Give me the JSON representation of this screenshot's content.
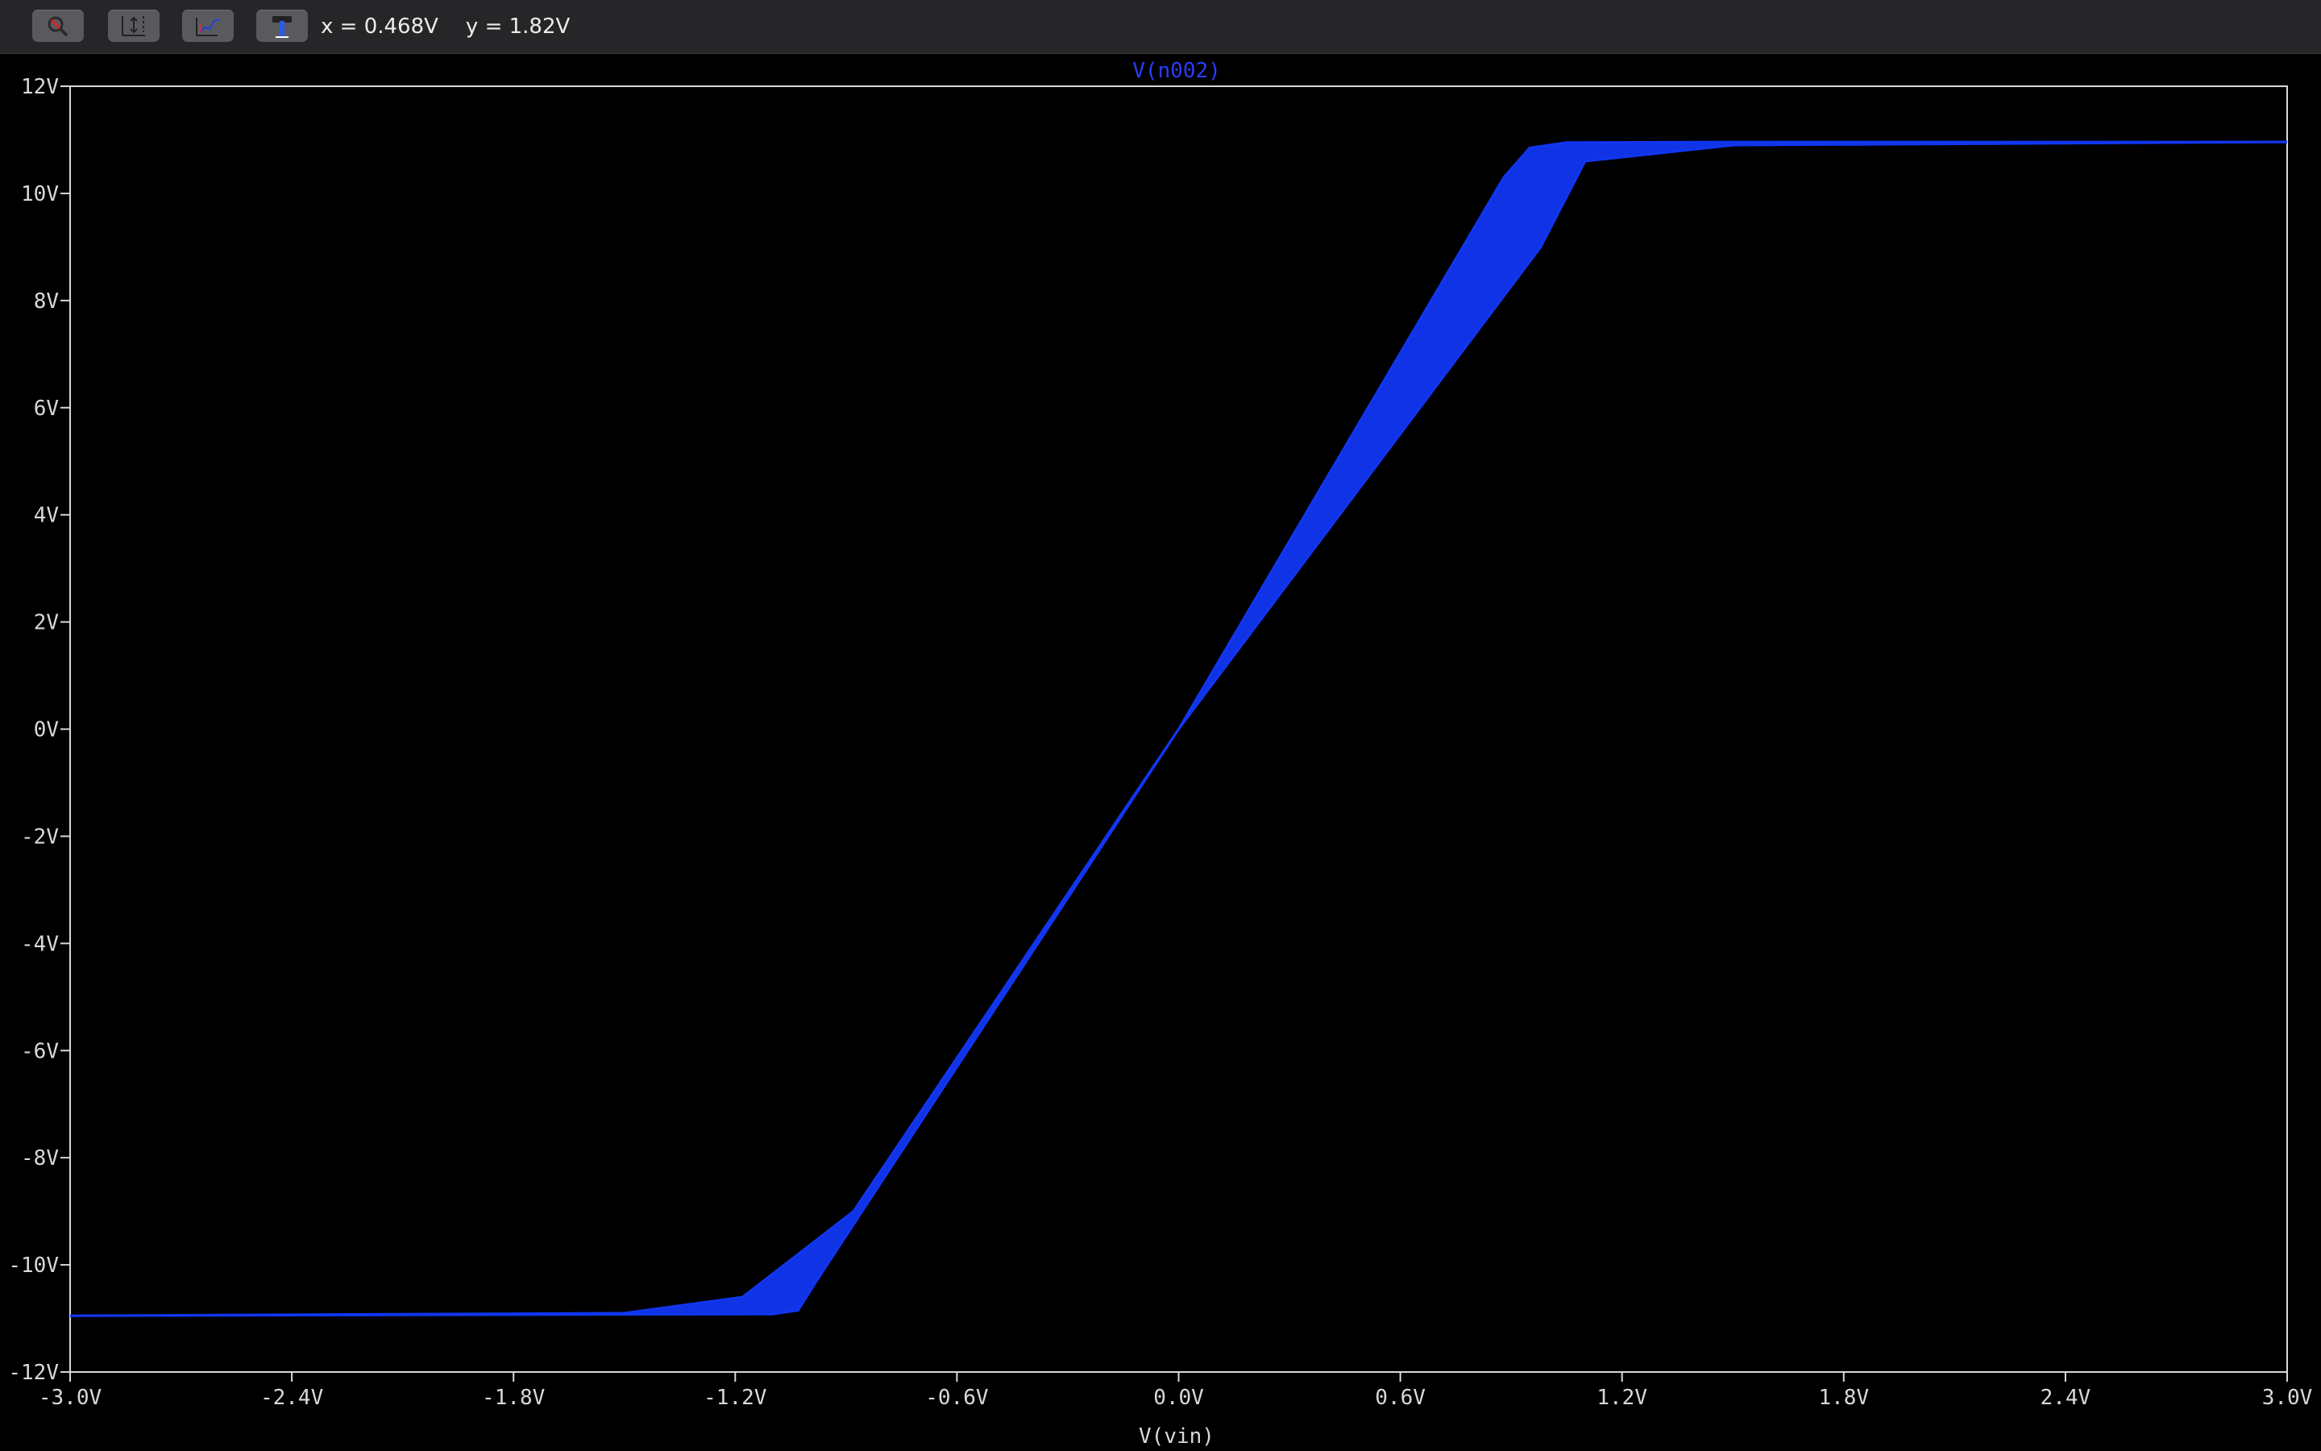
{
  "toolbar": {
    "buttons": [
      {
        "name": "zoom-tool",
        "icon": "magnifier-icon"
      },
      {
        "name": "autorange-tool",
        "icon": "autorange-icon"
      },
      {
        "name": "traces-tool",
        "icon": "trace-icon"
      },
      {
        "name": "settings-tool",
        "icon": "hammer-icon"
      }
    ],
    "cursor_x": "x = 0.468V",
    "cursor_y": "y = 1.82V"
  },
  "colors": {
    "background": "#000000",
    "toolbar": "#262628",
    "axis": "#d8d8d8",
    "trace": "#1136f2",
    "title": "#2a3cff"
  },
  "chart_data": {
    "type": "line",
    "title": "V(n002)",
    "xlabel": "V(vin)",
    "ylabel": "",
    "xlim": [
      -3.0,
      3.0
    ],
    "ylim": [
      -12,
      12
    ],
    "grid": false,
    "x_ticks": [
      "-3.0V",
      "-2.4V",
      "-1.8V",
      "-1.2V",
      "-0.6V",
      "0.0V",
      "0.6V",
      "1.2V",
      "1.8V",
      "2.4V",
      "3.0V"
    ],
    "y_ticks": [
      "12V",
      "10V",
      "8V",
      "6V",
      "4V",
      "2V",
      "0V",
      "-2V",
      "-4V",
      "-6V",
      "-8V",
      "-10V",
      "-12V"
    ],
    "series": [
      {
        "x": [
          -3.0,
          -1.5,
          -1.18,
          -0.88,
          0.0,
          0.88,
          0.95,
          1.05,
          1.5,
          3.0
        ],
        "y": [
          -10.95,
          -10.9,
          -10.6,
          -9.0,
          0.0,
          10.3,
          10.85,
          10.95,
          10.96,
          10.96
        ]
      },
      {
        "x": [
          -3.0,
          -1.1,
          -1.03,
          -0.98,
          0.0,
          0.98,
          1.1,
          1.5,
          3.0
        ],
        "y": [
          -10.95,
          -10.92,
          -10.85,
          -10.3,
          0.0,
          9.0,
          10.6,
          10.9,
          10.96
        ]
      }
    ]
  }
}
